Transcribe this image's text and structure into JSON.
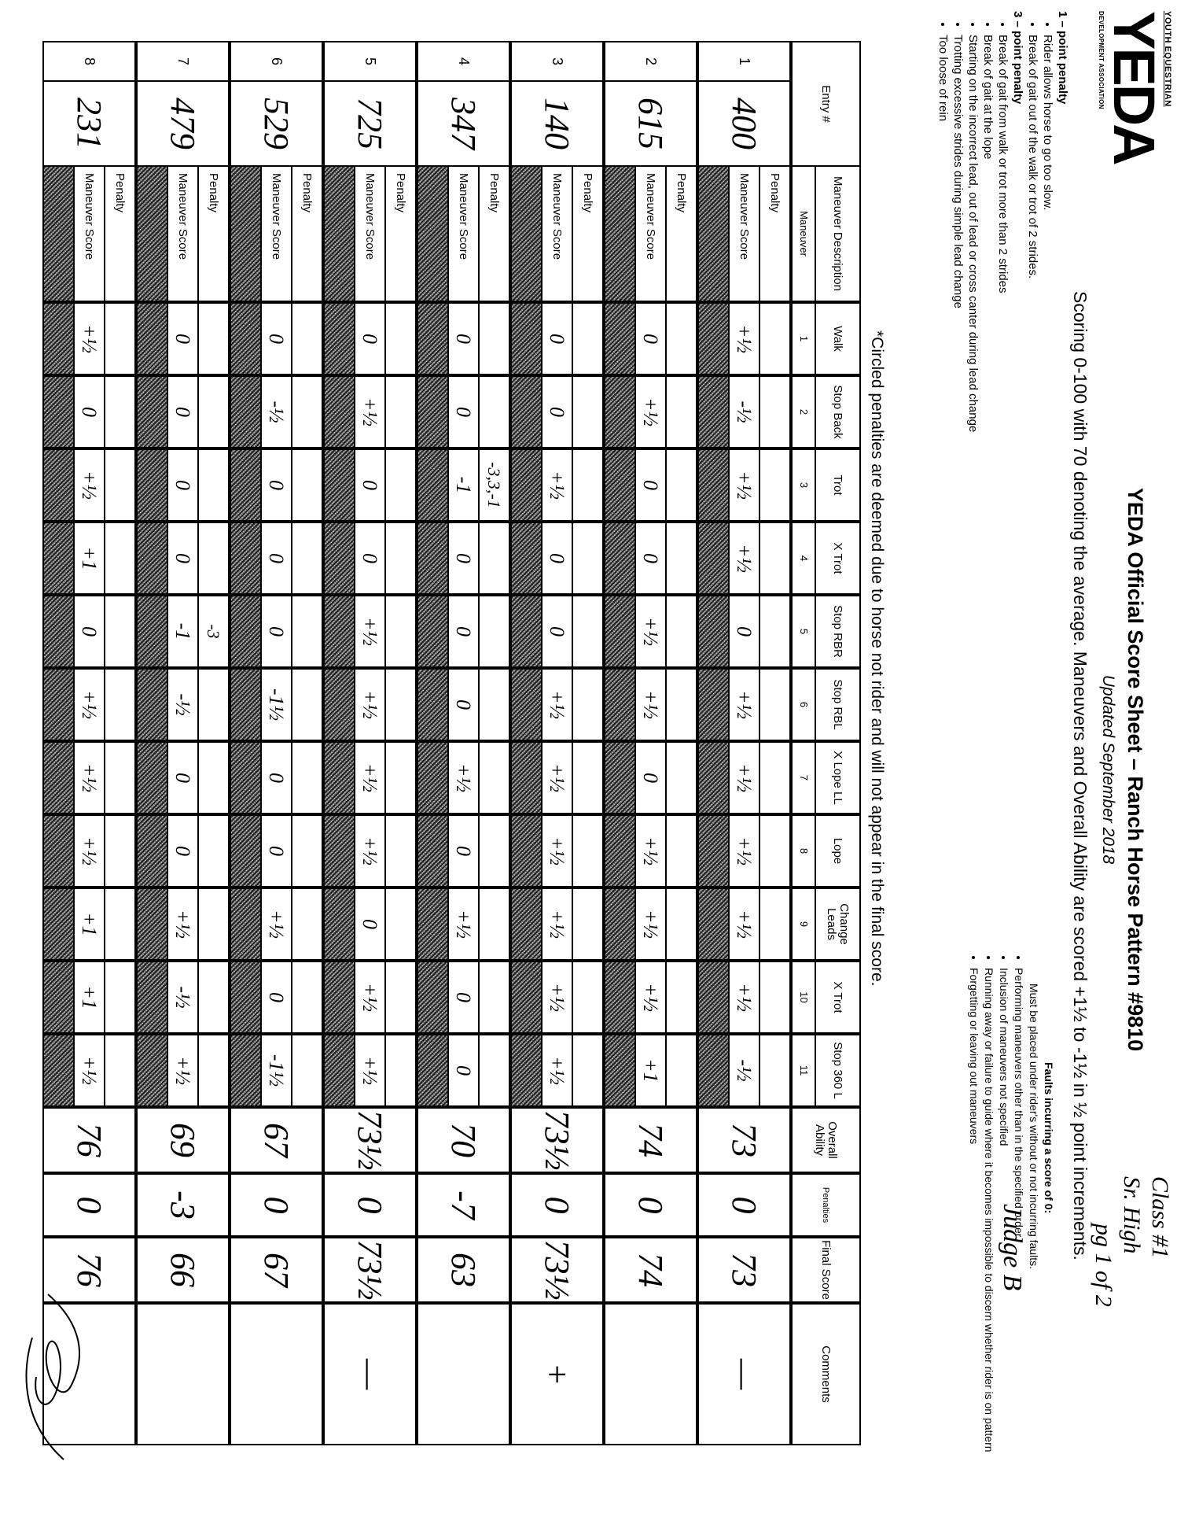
{
  "logo": {
    "top": "YOUTH EQUESTRIAN",
    "mark": "YEDA",
    "bottom": "DEVELOPMENT ASSOCIATION"
  },
  "header": {
    "title": "YEDA Official Score Sheet – Ranch Horse Pattern #9810",
    "subtitle": "Updated September 2018",
    "scoring": "Scoring 0-100 with 70 denoting the average. Maneuvers and Overall Ability are scored +1½ to -1½ in ½ point increments."
  },
  "penalty_rules": {
    "one_point_title": "1 – point penalty",
    "one_point": [
      "Rider allows horse to go too slow.",
      "Break of gait out of the walk or trot of 2 strides."
    ],
    "three_point_title": "3 – point penalty",
    "three_point": [
      "Break of gait from walk or trot more than 2 strides",
      "Break of gait at the lope",
      "Starting on the incorrect lead, out of lead or cross canter during lead change",
      "Trotting excessive strides during simple lead change",
      "Too loose of rein"
    ]
  },
  "faults": {
    "title": "Faults incurring a score of 0:",
    "note": "Must be placed under rider's without or not incurring faults.",
    "items": [
      "Performing maneuvers other than in the specified order",
      "Inclusion of maneuvers not specified",
      "Running away or failure to guide where it becomes impossible to discern whether rider is on pattern",
      "Forgetting or leaving out maneuvers"
    ]
  },
  "circled_note": "*Circled penalties are deemed due to horse not rider and will not appear in the final score.",
  "handwritten": {
    "class": "Class #1",
    "division": "Sr. High",
    "page": "pg 1 of 2",
    "judge": "Judge B"
  },
  "table": {
    "entry_header": "Entry #",
    "desc_header": "Maneuver Description",
    "desc_sub": "Maneuver",
    "maneuvers": [
      {
        "name": "Walk",
        "num": "1"
      },
      {
        "name": "Stop Back",
        "num": "2"
      },
      {
        "name": "Trot",
        "num": "3"
      },
      {
        "name": "X Trot",
        "num": "4"
      },
      {
        "name": "Stop RBR",
        "num": "5"
      },
      {
        "name": "Stop RBL",
        "num": "6"
      },
      {
        "name": "X Lope LL",
        "num": "7"
      },
      {
        "name": "Lope",
        "num": "8"
      },
      {
        "name": "Change Leads",
        "num": "9"
      },
      {
        "name": "X Trot",
        "num": "10"
      },
      {
        "name": "Stop 360 L",
        "num": "11"
      }
    ],
    "overall_header": "Overall Ability",
    "penalties_header": "Penalties",
    "final_header": "Final Score",
    "comments_header": "Comments",
    "penalty_label": "Penalty",
    "score_label": "Maneuver Score",
    "rows": [
      {
        "num": "1",
        "entry": "400",
        "penalties": [
          "",
          "",
          "",
          "",
          "",
          "",
          "",
          "",
          "",
          "",
          ""
        ],
        "scores": [
          "+½",
          "-½",
          "+½",
          "+½",
          "0",
          "+½",
          "+½",
          "+½",
          "+½",
          "+½",
          "-½"
        ],
        "overall": "73",
        "penalty_total": "0",
        "final": "73",
        "comment": "—"
      },
      {
        "num": "2",
        "entry": "615",
        "penalties": [
          "",
          "",
          "",
          "",
          "",
          "",
          "",
          "",
          "",
          "",
          ""
        ],
        "scores": [
          "0",
          "+½",
          "0",
          "0",
          "+½",
          "+½",
          "0",
          "+½",
          "+½",
          "+½",
          "+1"
        ],
        "overall": "74",
        "penalty_total": "0",
        "final": "74",
        "comment": ""
      },
      {
        "num": "3",
        "entry": "140",
        "penalties": [
          "",
          "",
          "",
          "",
          "",
          "",
          "",
          "",
          "",
          "",
          ""
        ],
        "scores": [
          "0",
          "0",
          "+½",
          "0",
          "0",
          "+½",
          "+½",
          "+½",
          "+½",
          "+½",
          "+½"
        ],
        "overall": "73½",
        "penalty_total": "0",
        "final": "73½",
        "comment": "+"
      },
      {
        "num": "4",
        "entry": "347",
        "penalties": [
          "",
          "",
          "-3,3,-1",
          "",
          "",
          "",
          "",
          "",
          "",
          "",
          ""
        ],
        "scores": [
          "0",
          "0",
          "-1",
          "0",
          "0",
          "0",
          "+½",
          "0",
          "+½",
          "0",
          "0"
        ],
        "overall": "70",
        "penalty_total": "-7",
        "final": "63",
        "comment": ""
      },
      {
        "num": "5",
        "entry": "725",
        "penalties": [
          "",
          "",
          "",
          "",
          "",
          "",
          "",
          "",
          "",
          "",
          ""
        ],
        "scores": [
          "0",
          "+½",
          "0",
          "0",
          "+½",
          "+½",
          "+½",
          "+½",
          "0",
          "+½",
          "+½"
        ],
        "overall": "73½",
        "penalty_total": "0",
        "final": "73½",
        "comment": "—"
      },
      {
        "num": "6",
        "entry": "529",
        "penalties": [
          "",
          "",
          "",
          "",
          "",
          "",
          "",
          "",
          "",
          "",
          ""
        ],
        "scores": [
          "0",
          "-½",
          "0",
          "0",
          "0",
          "-1½",
          "0",
          "0",
          "+½",
          "0",
          "-1½"
        ],
        "overall": "67",
        "penalty_total": "0",
        "final": "67",
        "comment": ""
      },
      {
        "num": "7",
        "entry": "479",
        "penalties": [
          "",
          "",
          "",
          "",
          "-3",
          "",
          "",
          "",
          "",
          "",
          ""
        ],
        "scores": [
          "0",
          "0",
          "0",
          "0",
          "-1",
          "-½",
          "0",
          "0",
          "+½",
          "-½",
          "+½"
        ],
        "overall": "69",
        "penalty_total": "-3",
        "final": "66",
        "comment": ""
      },
      {
        "num": "8",
        "entry": "231",
        "penalties": [
          "",
          "",
          "",
          "",
          "",
          "",
          "",
          "",
          "",
          "",
          ""
        ],
        "scores": [
          "+½",
          "0",
          "+½",
          "+1",
          "0",
          "+½",
          "+½",
          "+½",
          "+1",
          "+1",
          "+½"
        ],
        "overall": "76",
        "penalty_total": "0",
        "final": "76",
        "comment": ""
      }
    ]
  }
}
